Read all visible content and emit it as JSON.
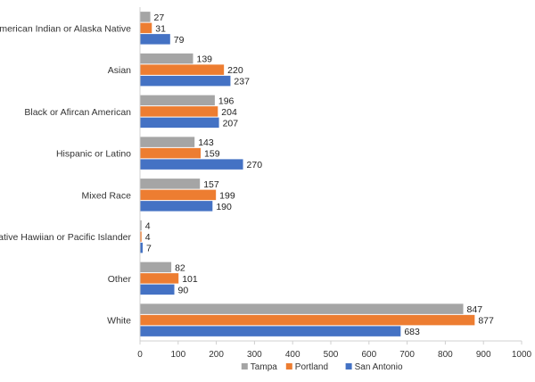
{
  "chart_data": {
    "type": "bar",
    "orientation": "horizontal",
    "categories": [
      "American Indian or Alaska Native",
      "Asian",
      "Black or Afircan American",
      "Hispanic or Latino",
      "Mixed Race",
      "Native Hawiian or Pacific Islander",
      "Other",
      "White"
    ],
    "series": [
      {
        "name": "Tampa",
        "color": "#a5a5a5",
        "values": [
          27,
          139,
          196,
          143,
          157,
          4,
          82,
          847
        ]
      },
      {
        "name": "Portland",
        "color": "#ed7d31",
        "values": [
          31,
          220,
          204,
          159,
          199,
          4,
          101,
          877
        ]
      },
      {
        "name": "San Antonio",
        "color": "#4472c4",
        "values": [
          79,
          237,
          207,
          270,
          190,
          7,
          90,
          683
        ]
      }
    ],
    "xlim": [
      0,
      1000
    ],
    "xticks": [
      0,
      100,
      200,
      300,
      400,
      500,
      600,
      700,
      800,
      900,
      1000
    ],
    "grid": false,
    "legend": "bottom",
    "data_labels": true
  }
}
